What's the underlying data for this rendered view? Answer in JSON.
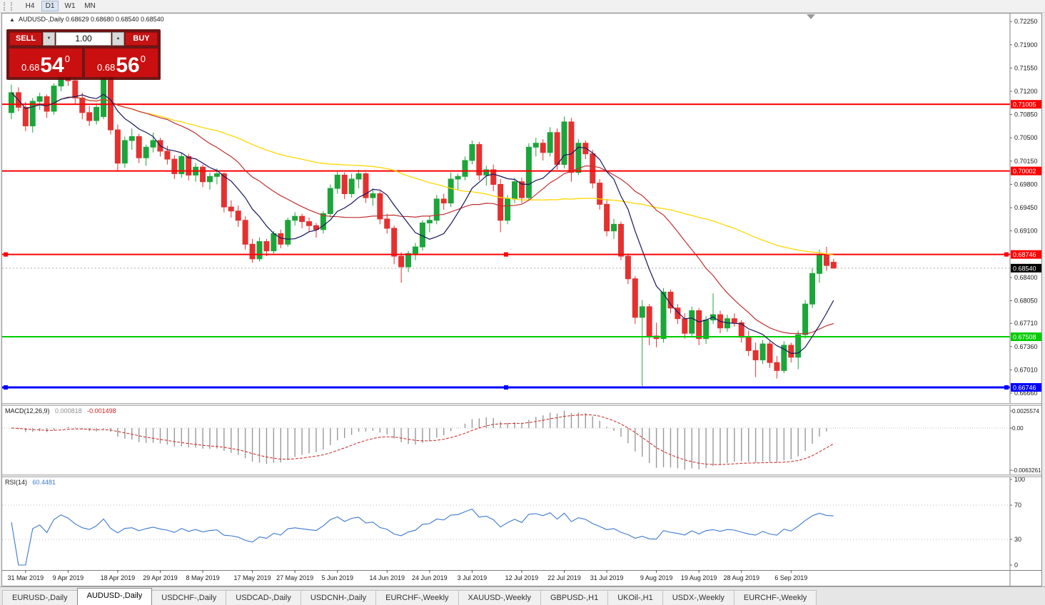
{
  "icons": {
    "symbol_marker": "▲",
    "volume_down": "▼",
    "volume_up": "▲"
  },
  "toolbar": {
    "timeframes": [
      "H4",
      "D1",
      "W1",
      "MN"
    ],
    "active": "D1"
  },
  "chart": {
    "title": "AUDUSD-,Daily",
    "ohlc_text": "0.68629 0.68680 0.68540 0.68540"
  },
  "one_click": {
    "sell_label": "SELL",
    "buy_label": "BUY",
    "volume": "1.00",
    "sell_price": {
      "prefix": "0.68",
      "big": "54",
      "sup": "0"
    },
    "buy_price": {
      "prefix": "0.68",
      "big": "56",
      "sup": "0"
    }
  },
  "tabs": {
    "active_index": 1,
    "items": [
      "EURUSD-,Daily",
      "AUDUSD-,Daily",
      "USDCHF-,Daily",
      "USDCAD-,Daily",
      "USDCNH-,Daily",
      "EURCHF-,Weekly",
      "XAUUSD-,Weekly",
      "GBPUSD-,H1",
      "UKOil-,H1",
      "USDX-,Weekly",
      "EURCHF-,Weekly"
    ]
  },
  "chart_data": {
    "type": "candlestick",
    "symbol": "AUDUSD",
    "timeframe": "Daily",
    "colors": {
      "up": "#1CA53A",
      "down": "#E53030"
    },
    "y_axis": {
      "scale_top": 0.7237,
      "scale_bottom": 0.6651,
      "tick_labels": [
        "0.72250",
        "0.71900",
        "0.71550",
        "0.71200",
        "0.70850",
        "0.70500",
        "0.70150",
        "0.69800",
        "0.69450",
        "0.69100",
        "0.68750",
        "0.68400",
        "0.68050",
        "0.67710",
        "0.67360",
        "0.67010",
        "0.66660"
      ]
    },
    "current_price": {
      "label": "0.68540",
      "value": 0.6854
    },
    "hlines": [
      {
        "label": "0.71005",
        "value": 0.71005,
        "color": "#FF0000",
        "width": 2,
        "selected": false
      },
      {
        "label": "0.70002",
        "value": 0.70002,
        "color": "#FF0000",
        "width": 2,
        "selected": false
      },
      {
        "label": "0.68746",
        "value": 0.68746,
        "color": "#FF0000",
        "width": 2,
        "selected": true
      },
      {
        "label": "0.67508",
        "value": 0.67508,
        "color": "#00CC00",
        "width": 2,
        "selected": false
      },
      {
        "label": "0.66746",
        "value": 0.66746,
        "color": "#0000FF",
        "width": 3,
        "selected": true
      }
    ],
    "moving_averages": [
      {
        "period": 55,
        "color": "#FFD700",
        "width": 1.3
      },
      {
        "period": 20,
        "color": "#C03030",
        "width": 1.2
      },
      {
        "period": 8,
        "color": "#16165E",
        "width": 1.2
      }
    ],
    "macd": {
      "label": "MACD(12,26,9)",
      "value_main": "0.000818",
      "value_signal": "-0.001498",
      "fast": 12,
      "slow": 26,
      "signal_period": 9,
      "axis": [
        "0.0025574",
        "0.00",
        "-0.0063261"
      ],
      "hist_color": "#999999",
      "signal_color": "#CC2222"
    },
    "rsi": {
      "label": "RSI(14)",
      "value": "60.4481",
      "period": 14,
      "axis": [
        "100",
        "70",
        "30",
        "0"
      ],
      "levels": [
        70,
        30
      ],
      "color": "#3C78D2"
    },
    "x_labels": [
      {
        "i": 2,
        "t": "31 Mar 2019"
      },
      {
        "i": 8,
        "t": "9 Apr 2019"
      },
      {
        "i": 15,
        "t": "18 Apr 2019"
      },
      {
        "i": 21,
        "t": "29 Apr 2019"
      },
      {
        "i": 27,
        "t": "8 May 2019"
      },
      {
        "i": 34,
        "t": "17 May 2019"
      },
      {
        "i": 40,
        "t": "27 May 2019"
      },
      {
        "i": 46,
        "t": "5 Jun 2019"
      },
      {
        "i": 53,
        "t": "14 Jun 2019"
      },
      {
        "i": 59,
        "t": "24 Jun 2019"
      },
      {
        "i": 65,
        "t": "3 Jul 2019"
      },
      {
        "i": 72,
        "t": "12 Jul 2019"
      },
      {
        "i": 78,
        "t": "22 Jul 2019"
      },
      {
        "i": 84,
        "t": "31 Jul 2019"
      },
      {
        "i": 91,
        "t": "9 Aug 2019"
      },
      {
        "i": 97,
        "t": "19 Aug 2019"
      },
      {
        "i": 103,
        "t": "28 Aug 2019"
      },
      {
        "i": 110,
        "t": "6 Sep 2019"
      }
    ],
    "candles": [
      [
        0.7088,
        0.713,
        0.7078,
        0.7118
      ],
      [
        0.7118,
        0.7126,
        0.709,
        0.7096
      ],
      [
        0.7096,
        0.7104,
        0.706,
        0.7068
      ],
      [
        0.7068,
        0.711,
        0.7058,
        0.7105
      ],
      [
        0.7105,
        0.7118,
        0.7092,
        0.7112
      ],
      [
        0.7112,
        0.7115,
        0.708,
        0.709
      ],
      [
        0.709,
        0.7132,
        0.7085,
        0.7128
      ],
      [
        0.7128,
        0.7175,
        0.712,
        0.7148
      ],
      [
        0.7148,
        0.7168,
        0.7128,
        0.7136
      ],
      [
        0.7136,
        0.7142,
        0.71,
        0.711
      ],
      [
        0.711,
        0.7118,
        0.7078,
        0.7088
      ],
      [
        0.7088,
        0.7098,
        0.7068,
        0.7076
      ],
      [
        0.7076,
        0.7102,
        0.707,
        0.7096
      ],
      [
        0.7082,
        0.715,
        0.7078,
        0.7142
      ],
      [
        0.7142,
        0.7148,
        0.7055,
        0.7062
      ],
      [
        0.7062,
        0.707,
        0.7,
        0.7012
      ],
      [
        0.7012,
        0.7052,
        0.7005,
        0.7046
      ],
      [
        0.7046,
        0.7064,
        0.7032,
        0.7052
      ],
      [
        0.7052,
        0.7056,
        0.7012,
        0.702
      ],
      [
        0.702,
        0.704,
        0.7008,
        0.7036
      ],
      [
        0.7036,
        0.7058,
        0.7028,
        0.7046
      ],
      [
        0.7046,
        0.705,
        0.7022,
        0.703
      ],
      [
        0.703,
        0.7038,
        0.701,
        0.7018
      ],
      [
        0.7018,
        0.7024,
        0.6988,
        0.6996
      ],
      [
        0.6996,
        0.7028,
        0.699,
        0.7022
      ],
      [
        0.7022,
        0.7026,
        0.6986,
        0.6994
      ],
      [
        0.6994,
        0.7012,
        0.6984,
        0.7006
      ],
      [
        0.7006,
        0.701,
        0.6976,
        0.6984
      ],
      [
        0.6984,
        0.6998,
        0.6972,
        0.6992
      ],
      [
        0.6992,
        0.7004,
        0.698,
        0.6996
      ],
      [
        0.6996,
        0.6998,
        0.6938,
        0.6946
      ],
      [
        0.6946,
        0.6956,
        0.693,
        0.694
      ],
      [
        0.694,
        0.6948,
        0.6916,
        0.6926
      ],
      [
        0.6926,
        0.6932,
        0.6882,
        0.689
      ],
      [
        0.689,
        0.6898,
        0.6862,
        0.6868
      ],
      [
        0.6868,
        0.69,
        0.6864,
        0.6894
      ],
      [
        0.6894,
        0.6898,
        0.6872,
        0.688
      ],
      [
        0.688,
        0.691,
        0.6876,
        0.6906
      ],
      [
        0.6906,
        0.6912,
        0.6884,
        0.689
      ],
      [
        0.689,
        0.693,
        0.6886,
        0.6926
      ],
      [
        0.6926,
        0.6938,
        0.6918,
        0.6932
      ],
      [
        0.6932,
        0.6936,
        0.6914,
        0.6924
      ],
      [
        0.6924,
        0.693,
        0.6908,
        0.6918
      ],
      [
        0.6918,
        0.6922,
        0.69,
        0.6912
      ],
      [
        0.6912,
        0.694,
        0.6906,
        0.6936
      ],
      [
        0.6936,
        0.698,
        0.693,
        0.6974
      ],
      [
        0.6974,
        0.7,
        0.6966,
        0.6994
      ],
      [
        0.6994,
        0.6998,
        0.6958,
        0.6966
      ],
      [
        0.6966,
        0.6996,
        0.696,
        0.6988
      ],
      [
        0.6988,
        0.7002,
        0.6974,
        0.6996
      ],
      [
        0.6996,
        0.6998,
        0.6952,
        0.696
      ],
      [
        0.696,
        0.6974,
        0.6948,
        0.6966
      ],
      [
        0.6966,
        0.697,
        0.692,
        0.6928
      ],
      [
        0.6928,
        0.6936,
        0.6906,
        0.6914
      ],
      [
        0.6914,
        0.6918,
        0.686,
        0.6872
      ],
      [
        0.6872,
        0.6878,
        0.6832,
        0.6856
      ],
      [
        0.6856,
        0.688,
        0.6848,
        0.6876
      ],
      [
        0.6876,
        0.6892,
        0.6866,
        0.6886
      ],
      [
        0.6886,
        0.6926,
        0.688,
        0.6922
      ],
      [
        0.6922,
        0.6932,
        0.6908,
        0.6926
      ],
      [
        0.6926,
        0.6964,
        0.692,
        0.6958
      ],
      [
        0.6958,
        0.6966,
        0.6942,
        0.6952
      ],
      [
        0.6952,
        0.6998,
        0.6946,
        0.6988
      ],
      [
        0.6988,
        0.6996,
        0.6972,
        0.6992
      ],
      [
        0.6992,
        0.7022,
        0.6986,
        0.7016
      ],
      [
        0.7016,
        0.7046,
        0.701,
        0.704
      ],
      [
        0.704,
        0.7044,
        0.6986,
        0.6994
      ],
      [
        0.6994,
        0.7008,
        0.6978,
        0.7002
      ],
      [
        0.7002,
        0.701,
        0.697,
        0.698
      ],
      [
        0.698,
        0.6988,
        0.6908,
        0.6926
      ],
      [
        0.6926,
        0.6964,
        0.692,
        0.6958
      ],
      [
        0.6958,
        0.699,
        0.6952,
        0.6984
      ],
      [
        0.6984,
        0.699,
        0.6952,
        0.696
      ],
      [
        0.696,
        0.7042,
        0.6956,
        0.7036
      ],
      [
        0.7036,
        0.705,
        0.7022,
        0.7042
      ],
      [
        0.7042,
        0.7048,
        0.7016,
        0.7028
      ],
      [
        0.7028,
        0.7066,
        0.7022,
        0.7058
      ],
      [
        0.7058,
        0.7064,
        0.7002,
        0.701
      ],
      [
        0.701,
        0.7082,
        0.7004,
        0.7074
      ],
      [
        0.7074,
        0.708,
        0.6984,
        0.6998
      ],
      [
        0.6998,
        0.7048,
        0.6994,
        0.7042
      ],
      [
        0.7042,
        0.7046,
        0.7018,
        0.7026
      ],
      [
        0.7026,
        0.7032,
        0.6974,
        0.6982
      ],
      [
        0.6982,
        0.6988,
        0.6942,
        0.695
      ],
      [
        0.695,
        0.6958,
        0.6902,
        0.691
      ],
      [
        0.691,
        0.6928,
        0.6898,
        0.692
      ],
      [
        0.692,
        0.6924,
        0.6866,
        0.6872
      ],
      [
        0.6872,
        0.6876,
        0.683,
        0.6838
      ],
      [
        0.6838,
        0.6842,
        0.677,
        0.678
      ],
      [
        0.678,
        0.6806,
        0.6677,
        0.6796
      ],
      [
        0.6796,
        0.68,
        0.6738,
        0.6752
      ],
      [
        0.6752,
        0.6772,
        0.6735,
        0.6748
      ],
      [
        0.6748,
        0.6824,
        0.6742,
        0.6818
      ],
      [
        0.6818,
        0.6822,
        0.6786,
        0.6794
      ],
      [
        0.6794,
        0.68,
        0.677,
        0.6778
      ],
      [
        0.6778,
        0.6786,
        0.6748,
        0.6756
      ],
      [
        0.6756,
        0.6796,
        0.6752,
        0.679
      ],
      [
        0.679,
        0.6794,
        0.6738,
        0.6748
      ],
      [
        0.6748,
        0.6782,
        0.674,
        0.6776
      ],
      [
        0.6776,
        0.6816,
        0.677,
        0.6784
      ],
      [
        0.6784,
        0.679,
        0.6756,
        0.6764
      ],
      [
        0.6764,
        0.6784,
        0.6758,
        0.6778
      ],
      [
        0.6778,
        0.6786,
        0.6766,
        0.6772
      ],
      [
        0.6772,
        0.6776,
        0.6742,
        0.675
      ],
      [
        0.675,
        0.676,
        0.6722,
        0.673
      ],
      [
        0.673,
        0.6742,
        0.669,
        0.6716
      ],
      [
        0.6716,
        0.6746,
        0.671,
        0.674
      ],
      [
        0.674,
        0.6744,
        0.6704,
        0.6712
      ],
      [
        0.6712,
        0.6722,
        0.6688,
        0.67
      ],
      [
        0.67,
        0.6744,
        0.6696,
        0.6738
      ],
      [
        0.6738,
        0.6742,
        0.6712,
        0.672
      ],
      [
        0.672,
        0.676,
        0.6702,
        0.6754
      ],
      [
        0.6754,
        0.6806,
        0.6748,
        0.68
      ],
      [
        0.68,
        0.6854,
        0.6794,
        0.6846
      ],
      [
        0.6846,
        0.6882,
        0.6832,
        0.6874
      ],
      [
        0.6874,
        0.6886,
        0.685,
        0.6858
      ],
      [
        0.68629,
        0.6868,
        0.6854,
        0.6854
      ]
    ]
  }
}
